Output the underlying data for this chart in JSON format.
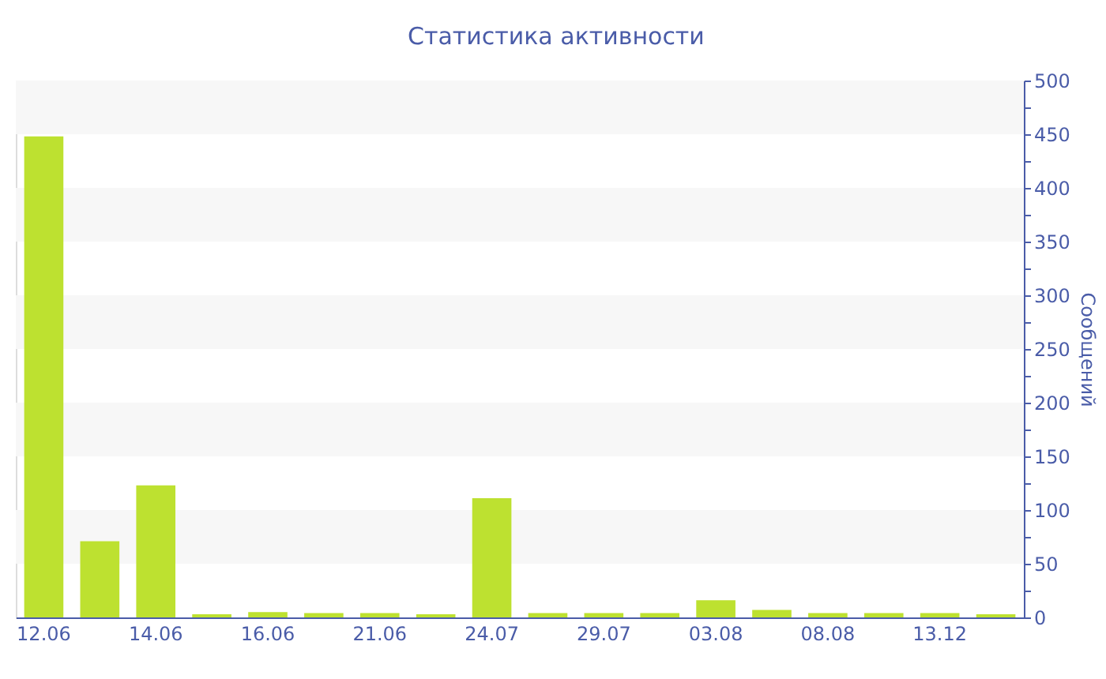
{
  "chart_data": {
    "type": "bar",
    "title": "Статистика активности",
    "ylabel": "Сообщений",
    "categories": [
      "12.06",
      null,
      "14.06",
      null,
      "16.06",
      null,
      "21.06",
      null,
      "24.07",
      null,
      "29.07",
      null,
      "03.08",
      null,
      "08.08",
      null,
      "13.12",
      null
    ],
    "series": [
      {
        "color": "#bde130",
        "values": [
          448,
          71,
          123,
          3,
          5,
          4,
          4,
          3,
          111,
          4,
          4,
          4,
          16,
          7,
          4,
          4,
          4,
          3
        ]
      }
    ],
    "ylim": [
      0,
      500
    ],
    "yticks": [
      0,
      {
        "value": 25,
        "label": null
      },
      50,
      {
        "value": 75,
        "label": null
      },
      100,
      {
        "value": 125,
        "label": null
      },
      150,
      {
        "value": 175,
        "label": null
      },
      200,
      {
        "value": 225,
        "label": null
      },
      250,
      {
        "value": 275,
        "label": null
      },
      300,
      {
        "value": 325,
        "label": null
      },
      350,
      {
        "value": 375,
        "label": null
      },
      400,
      {
        "value": 425,
        "label": null
      },
      450,
      {
        "value": 475,
        "label": null
      },
      500
    ],
    "bands": [
      {
        "axis": "y",
        "from": 50,
        "to": 100,
        "color": "#f7f7f7"
      },
      {
        "axis": "y",
        "from": 150,
        "to": 200,
        "color": "#f7f7f7"
      },
      {
        "axis": "y",
        "from": 250,
        "to": 300,
        "color": "#f7f7f7"
      },
      {
        "axis": "y",
        "from": 350,
        "to": 400,
        "color": "#f7f7f7"
      },
      {
        "axis": "y",
        "from": 450,
        "to": 500,
        "color": "#f7f7f7"
      }
    ]
  }
}
